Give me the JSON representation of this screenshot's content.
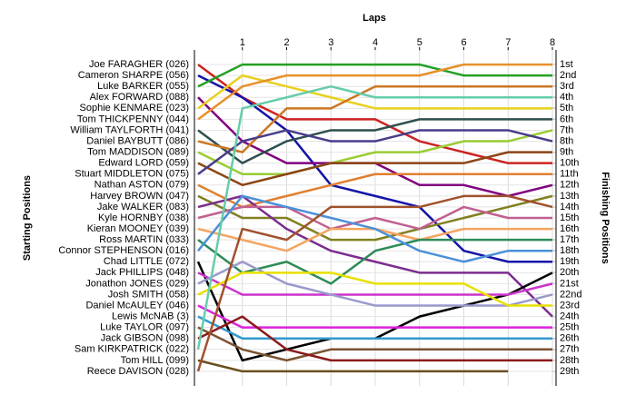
{
  "chart_data": {
    "type": "lap",
    "title": "Laps",
    "y_label": "Starting Positions",
    "y2_label": "Finishing Positions",
    "x": [
      0,
      1,
      2,
      3,
      4,
      5,
      6,
      7,
      8
    ],
    "xlim": [
      0,
      8
    ],
    "xticks": [
      1,
      2,
      3,
      4,
      5,
      6,
      7,
      8
    ],
    "ylim": [
      0,
      30
    ],
    "y_inverted": true,
    "grid": true,
    "yticks": [
      {
        "value": 1,
        "label": "1st"
      },
      {
        "value": 2,
        "label": "2nd"
      },
      {
        "value": 3,
        "label": "3rd"
      },
      {
        "value": 4,
        "label": "4th"
      },
      {
        "value": 5,
        "label": "5th"
      },
      {
        "value": 6,
        "label": "6th"
      },
      {
        "value": 7,
        "label": "7th"
      },
      {
        "value": 8,
        "label": "8th"
      },
      {
        "value": 9,
        "label": "9th"
      },
      {
        "value": 10,
        "label": "10th"
      },
      {
        "value": 11,
        "label": "11th"
      },
      {
        "value": 12,
        "label": "12th"
      },
      {
        "value": 13,
        "label": "13th"
      },
      {
        "value": 14,
        "label": "14th"
      },
      {
        "value": 15,
        "label": "15th"
      },
      {
        "value": 16,
        "label": "16th"
      },
      {
        "value": 17,
        "label": "17th"
      },
      {
        "value": 18,
        "label": "18th"
      },
      {
        "value": 19,
        "label": "19th"
      },
      {
        "value": 20,
        "label": "20th"
      },
      {
        "value": 21,
        "label": "21st"
      },
      {
        "value": 22,
        "label": "22nd"
      },
      {
        "value": 23,
        "label": "23rd"
      },
      {
        "value": 24,
        "label": "24th"
      },
      {
        "value": 25,
        "label": "25th"
      },
      {
        "value": 26,
        "label": "26th"
      },
      {
        "value": 27,
        "label": "27th"
      },
      {
        "value": 28,
        "label": "28th"
      },
      {
        "value": 29,
        "label": "29th"
      }
    ],
    "series": [
      {
        "name": "Joe FARAGHER (026)",
        "color": "#cc2222",
        "values": [
          1,
          4,
          6,
          6,
          6,
          8,
          9,
          10,
          10
        ]
      },
      {
        "name": "Cameron SHARPE (056)",
        "color": "#1414a8",
        "values": [
          2,
          4,
          7,
          12,
          13,
          14,
          18,
          19,
          19
        ]
      },
      {
        "name": "Luke BARKER (055)",
        "color": "#22a022",
        "values": [
          3,
          1,
          1,
          1,
          1,
          1,
          2,
          2,
          2
        ]
      },
      {
        "name": "Alex FORWARD (088)",
        "color": "#800080",
        "values": [
          4,
          8,
          10,
          10,
          10,
          12,
          12,
          13,
          12
        ]
      },
      {
        "name": "Sophie KENMARE (023)",
        "color": "#e8d020",
        "values": [
          5,
          2,
          3,
          4,
          5,
          5,
          5,
          5,
          5
        ]
      },
      {
        "name": "Tom THICKPENNY (044)",
        "color": "#e8902a",
        "values": [
          6,
          3,
          2,
          2,
          2,
          2,
          1,
          1,
          1
        ]
      },
      {
        "name": "William TAYLFORTH (041)",
        "color": "#2f4f4f",
        "values": [
          7,
          10,
          8,
          7,
          7,
          6,
          6,
          6,
          6
        ]
      },
      {
        "name": "Daniel BAYBUTT (086)",
        "color": "#cc7722",
        "values": [
          8,
          9,
          5,
          5,
          3,
          3,
          3,
          3,
          3
        ]
      },
      {
        "name": "Tom MADDISON (089)",
        "color": "#99cc33",
        "values": [
          9,
          11,
          11,
          10,
          9,
          9,
          8,
          8,
          7
        ]
      },
      {
        "name": "Edward LORD (059)",
        "color": "#8b4513",
        "values": [
          10,
          12,
          11,
          10,
          10,
          10,
          10,
          9,
          9
        ]
      },
      {
        "name": "Stuart MIDDLETON (075)",
        "color": "#483d8b",
        "values": [
          11,
          8,
          7,
          8,
          8,
          7,
          7,
          7,
          8
        ]
      },
      {
        "name": "Nathan ASTON (079)",
        "color": "#e08030",
        "values": [
          12,
          14,
          13,
          12,
          11,
          11,
          11,
          11,
          11
        ]
      },
      {
        "name": "Harvey BROWN (047)",
        "color": "#808020",
        "values": [
          13,
          15,
          15,
          17,
          17,
          16,
          15,
          14,
          13
        ]
      },
      {
        "name": "Jake WALKER (083)",
        "color": "#7b2d8e",
        "values": [
          14,
          13,
          16,
          18,
          19,
          20,
          20,
          20,
          24
        ]
      },
      {
        "name": "Kyle HORNBY (038)",
        "color": "#c06090",
        "values": [
          15,
          14,
          14,
          16,
          15,
          16,
          14,
          15,
          15
        ]
      },
      {
        "name": "Kieran MOONEY (039)",
        "color": "#f4a460",
        "values": [
          16,
          17,
          18,
          16,
          16,
          17,
          16,
          16,
          16
        ]
      },
      {
        "name": "Ross MARTIN (033)",
        "color": "#2e8b57",
        "values": [
          17,
          20,
          19,
          21,
          18,
          17,
          17,
          17,
          17
        ]
      },
      {
        "name": "Connor STEPHENSON (016)",
        "color": "#4a90d9",
        "values": [
          18,
          13,
          14,
          15,
          16,
          18,
          19,
          18,
          18
        ]
      },
      {
        "name": "Chad LITTLE (072)",
        "color": "#000000",
        "values": [
          19,
          28,
          27,
          26,
          26,
          24,
          23,
          22,
          20
        ]
      },
      {
        "name": "Jack PHILLIPS (048)",
        "color": "#cc33cc",
        "values": [
          20,
          22,
          22,
          22,
          22,
          22,
          22,
          22,
          21
        ]
      },
      {
        "name": "Jonathon JONES (029)",
        "color": "#9999cc",
        "values": [
          21,
          19,
          21,
          22,
          23,
          23,
          23,
          23,
          22
        ]
      },
      {
        "name": "Josh SMITH (058)",
        "color": "#e8e000",
        "values": [
          22,
          20,
          20,
          20,
          21,
          21,
          21,
          23,
          23
        ]
      },
      {
        "name": "Daniel McAULEY (046)",
        "color": "#dd22dd",
        "values": [
          23,
          25,
          25,
          25,
          25,
          25,
          25,
          25,
          25
        ]
      },
      {
        "name": "Lewis McNAB (3)",
        "color": "#3399cc",
        "values": [
          24,
          26,
          26,
          26,
          26,
          26,
          26,
          26,
          26
        ]
      },
      {
        "name": "Luke TAYLOR (097)",
        "color": "#7a5230",
        "values": [
          25,
          27,
          28,
          27,
          27,
          27,
          27,
          27,
          27
        ]
      },
      {
        "name": "Jack GIBSON (098)",
        "color": "#8b1a1a",
        "values": [
          26,
          24,
          27,
          28,
          28,
          28,
          28,
          28,
          28
        ]
      },
      {
        "name": "Sam KIRKPATRICK (022)",
        "color": "#66cdaa",
        "values": [
          27,
          5,
          4,
          3,
          4,
          4,
          4,
          4,
          4
        ]
      },
      {
        "name": "Tom HILL (099)",
        "color": "#6b4e1f",
        "values": [
          28,
          29,
          29,
          29,
          29,
          29,
          29,
          29,
          null
        ]
      },
      {
        "name": "Reece DAVISON (028)",
        "color": "#a0522d",
        "values": [
          29,
          16,
          17,
          14,
          14,
          14,
          13,
          13,
          14
        ]
      }
    ]
  }
}
